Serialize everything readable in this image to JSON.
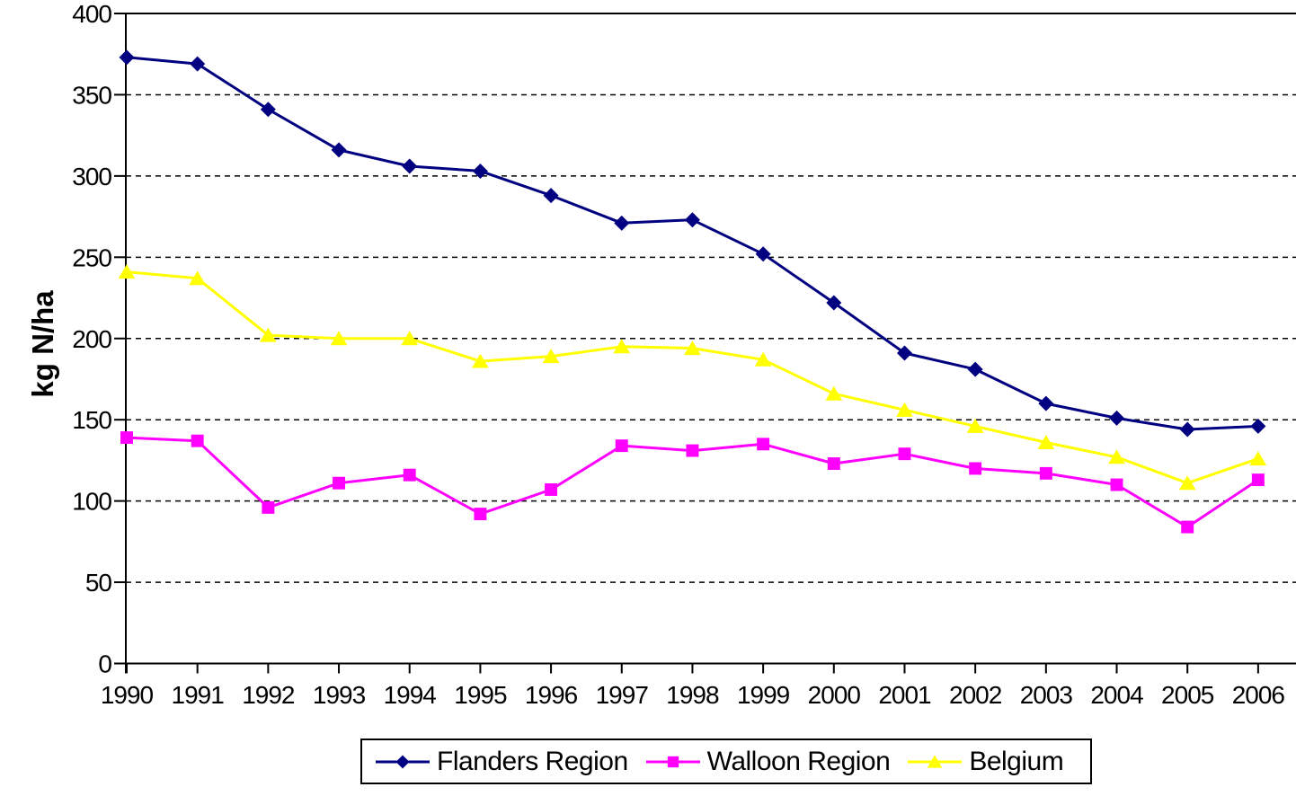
{
  "chart_data": {
    "type": "line",
    "title": "",
    "xlabel": "",
    "ylabel": "kg N/ha",
    "ylim": [
      0,
      400
    ],
    "yticks": [
      0,
      50,
      100,
      150,
      200,
      250,
      300,
      350,
      400
    ],
    "ytick_labels": [
      "0",
      "50",
      "100",
      "150",
      "200",
      "250",
      "300",
      "350",
      "400"
    ],
    "grid": "horizontal-dashed",
    "legend_position": "bottom-center",
    "categories": [
      "1990",
      "1991",
      "1992",
      "1993",
      "1994",
      "1995",
      "1996",
      "1997",
      "1998",
      "1999",
      "2000",
      "2001",
      "2002",
      "2003",
      "2004",
      "2005",
      "2006"
    ],
    "series": [
      {
        "name": "Flanders Region",
        "color": "#000080",
        "marker": "diamond",
        "values": [
          373,
          369,
          341,
          316,
          306,
          303,
          288,
          271,
          273,
          252,
          222,
          191,
          181,
          160,
          151,
          144,
          146
        ]
      },
      {
        "name": "Walloon Region",
        "color": "#FF00FF",
        "marker": "square",
        "values": [
          139,
          137,
          96,
          111,
          116,
          92,
          107,
          134,
          131,
          135,
          123,
          129,
          120,
          117,
          110,
          84,
          113
        ]
      },
      {
        "name": "Belgium",
        "color": "#FFFF00",
        "marker": "triangle",
        "values": [
          241,
          237,
          202,
          200,
          200,
          186,
          189,
          195,
          194,
          187,
          166,
          156,
          146,
          136,
          127,
          111,
          126
        ]
      }
    ]
  },
  "colors": {
    "axis": "#000000",
    "gridline": "#000000",
    "background": "#FFFFFF",
    "tick_text": "#000000"
  }
}
